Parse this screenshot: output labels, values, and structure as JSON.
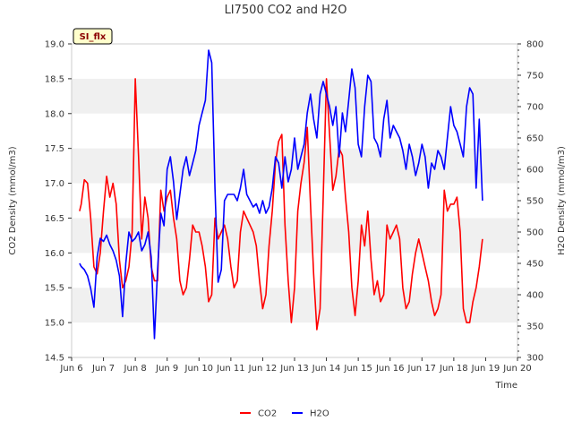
{
  "chart_data": {
    "type": "line",
    "title": "LI7500 CO2 and H2O",
    "badge": "SI_flx",
    "xlabel": "Time",
    "ylabel_left": "CO2 Density (mmol/m3)",
    "ylabel_right": "H2O Density (mmol/m3)",
    "x_ticks": [
      "Jun 6",
      "Jun 7",
      "Jun 8",
      "Jun 9",
      "Jun 10",
      "Jun 11",
      "Jun 12",
      "Jun 13",
      "Jun 14",
      "Jun 15",
      "Jun 16",
      "Jun 17",
      "Jun 18",
      "Jun 19",
      "Jun 20"
    ],
    "xlim": [
      6,
      20
    ],
    "ylim_left": [
      14.5,
      19.0
    ],
    "ylim_right": [
      300,
      800
    ],
    "y_ticks_left": [
      "14.5",
      "15.0",
      "15.5",
      "16.0",
      "16.5",
      "17.0",
      "17.5",
      "18.0",
      "18.5",
      "19.0"
    ],
    "y_ticks_right": [
      "300",
      "350",
      "400",
      "450",
      "500",
      "550",
      "600",
      "650",
      "700",
      "750",
      "800"
    ],
    "grid": "horizontal bands",
    "legend_position": "bottom-center",
    "colors": {
      "CO2": "#ff0000",
      "H2O": "#0000ff",
      "band": "#f0f0f0"
    },
    "series": [
      {
        "name": "CO2",
        "axis": "left",
        "x": [
          6.25,
          6.3,
          6.4,
          6.5,
          6.6,
          6.7,
          6.8,
          6.9,
          7.0,
          7.1,
          7.2,
          7.3,
          7.4,
          7.5,
          7.6,
          7.7,
          7.8,
          7.9,
          8.0,
          8.1,
          8.2,
          8.3,
          8.4,
          8.5,
          8.6,
          8.7,
          8.8,
          8.9,
          9.0,
          9.1,
          9.2,
          9.3,
          9.4,
          9.5,
          9.6,
          9.7,
          9.8,
          9.9,
          10.0,
          10.1,
          10.2,
          10.3,
          10.4,
          10.5,
          10.6,
          10.7,
          10.8,
          10.9,
          11.0,
          11.1,
          11.2,
          11.3,
          11.4,
          11.5,
          11.6,
          11.7,
          11.8,
          11.9,
          12.0,
          12.1,
          12.2,
          12.3,
          12.4,
          12.5,
          12.6,
          12.7,
          12.8,
          12.9,
          13.0,
          13.1,
          13.2,
          13.3,
          13.4,
          13.5,
          13.6,
          13.7,
          13.8,
          13.9,
          14.0,
          14.1,
          14.2,
          14.3,
          14.4,
          14.5,
          14.6,
          14.7,
          14.8,
          14.9,
          15.0,
          15.1,
          15.2,
          15.3,
          15.4,
          15.5,
          15.6,
          15.7,
          15.8,
          15.9,
          16.0,
          16.1,
          16.2,
          16.3,
          16.4,
          16.5,
          16.6,
          16.7,
          16.8,
          16.9,
          17.0,
          17.1,
          17.2,
          17.3,
          17.4,
          17.5,
          17.6,
          17.7,
          17.8,
          17.9,
          18.0,
          18.1,
          18.2,
          18.3,
          18.4,
          18.5,
          18.6,
          18.7,
          18.8,
          18.9
        ],
        "values": [
          16.6,
          16.7,
          17.05,
          17.0,
          16.5,
          15.8,
          15.7,
          16.0,
          16.6,
          17.1,
          16.8,
          17.0,
          16.7,
          15.9,
          15.5,
          15.6,
          15.8,
          16.3,
          18.5,
          17.4,
          16.2,
          16.8,
          16.5,
          15.8,
          15.6,
          15.6,
          16.9,
          16.6,
          16.8,
          16.9,
          16.5,
          16.2,
          15.6,
          15.4,
          15.5,
          15.9,
          16.4,
          16.3,
          16.3,
          16.1,
          15.8,
          15.3,
          15.4,
          16.5,
          16.2,
          16.3,
          16.4,
          16.2,
          15.8,
          15.5,
          15.6,
          16.3,
          16.6,
          16.5,
          16.4,
          16.3,
          16.1,
          15.6,
          15.2,
          15.4,
          16.1,
          16.6,
          17.3,
          17.6,
          17.7,
          16.4,
          15.6,
          15.0,
          15.5,
          16.6,
          17.0,
          17.3,
          17.8,
          16.7,
          15.7,
          14.9,
          15.2,
          16.8,
          18.5,
          17.7,
          16.9,
          17.1,
          17.5,
          17.4,
          16.8,
          16.3,
          15.5,
          15.1,
          15.6,
          16.4,
          16.1,
          16.6,
          15.9,
          15.4,
          15.6,
          15.3,
          15.4,
          16.4,
          16.2,
          16.3,
          16.4,
          16.2,
          15.5,
          15.2,
          15.3,
          15.7,
          16.0,
          16.2,
          16.0,
          15.8,
          15.6,
          15.3,
          15.1,
          15.2,
          15.4,
          16.9,
          16.6,
          16.7,
          16.7,
          16.8,
          16.3,
          15.2,
          15.0,
          15.0,
          15.3,
          15.5,
          15.8,
          16.2
        ]
      },
      {
        "name": "H2O",
        "axis": "right",
        "x": [
          6.25,
          6.3,
          6.4,
          6.5,
          6.6,
          6.7,
          6.8,
          6.9,
          7.0,
          7.1,
          7.2,
          7.3,
          7.4,
          7.5,
          7.6,
          7.7,
          7.8,
          7.9,
          8.0,
          8.1,
          8.2,
          8.3,
          8.4,
          8.5,
          8.6,
          8.7,
          8.8,
          8.9,
          9.0,
          9.1,
          9.2,
          9.3,
          9.4,
          9.5,
          9.6,
          9.7,
          9.8,
          9.9,
          10.0,
          10.1,
          10.2,
          10.3,
          10.4,
          10.5,
          10.6,
          10.7,
          10.8,
          10.9,
          11.0,
          11.1,
          11.2,
          11.3,
          11.4,
          11.5,
          11.6,
          11.7,
          11.8,
          11.9,
          12.0,
          12.1,
          12.2,
          12.3,
          12.4,
          12.5,
          12.6,
          12.7,
          12.8,
          12.9,
          13.0,
          13.1,
          13.2,
          13.3,
          13.4,
          13.5,
          13.6,
          13.7,
          13.8,
          13.9,
          14.0,
          14.1,
          14.2,
          14.3,
          14.4,
          14.5,
          14.6,
          14.7,
          14.8,
          14.9,
          15.0,
          15.1,
          15.2,
          15.3,
          15.4,
          15.5,
          15.6,
          15.7,
          15.8,
          15.9,
          16.0,
          16.1,
          16.2,
          16.3,
          16.4,
          16.5,
          16.6,
          16.7,
          16.8,
          16.9,
          17.0,
          17.1,
          17.2,
          17.3,
          17.4,
          17.5,
          17.6,
          17.7,
          17.8,
          17.9,
          18.0,
          18.1,
          18.2,
          18.3,
          18.4,
          18.5,
          18.6,
          18.7,
          18.8,
          18.9
        ],
        "values": [
          450,
          445,
          440,
          430,
          410,
          380,
          460,
          490,
          485,
          495,
          480,
          470,
          455,
          430,
          365,
          450,
          500,
          485,
          490,
          500,
          470,
          480,
          500,
          460,
          330,
          440,
          530,
          510,
          600,
          620,
          580,
          520,
          560,
          600,
          620,
          590,
          610,
          630,
          670,
          690,
          710,
          790,
          770,
          570,
          420,
          440,
          550,
          560,
          560,
          560,
          550,
          570,
          600,
          560,
          550,
          540,
          545,
          530,
          550,
          530,
          540,
          570,
          620,
          610,
          570,
          620,
          580,
          600,
          650,
          600,
          620,
          640,
          690,
          720,
          680,
          650,
          720,
          740,
          720,
          700,
          670,
          700,
          620,
          690,
          660,
          710,
          760,
          730,
          640,
          620,
          700,
          750,
          740,
          650,
          640,
          620,
          680,
          710,
          650,
          670,
          660,
          650,
          630,
          600,
          640,
          620,
          590,
          610,
          640,
          620,
          570,
          610,
          600,
          630,
          620,
          600,
          650,
          700,
          670,
          660,
          640,
          620,
          700,
          730,
          720,
          570,
          680,
          550
        ]
      }
    ]
  }
}
